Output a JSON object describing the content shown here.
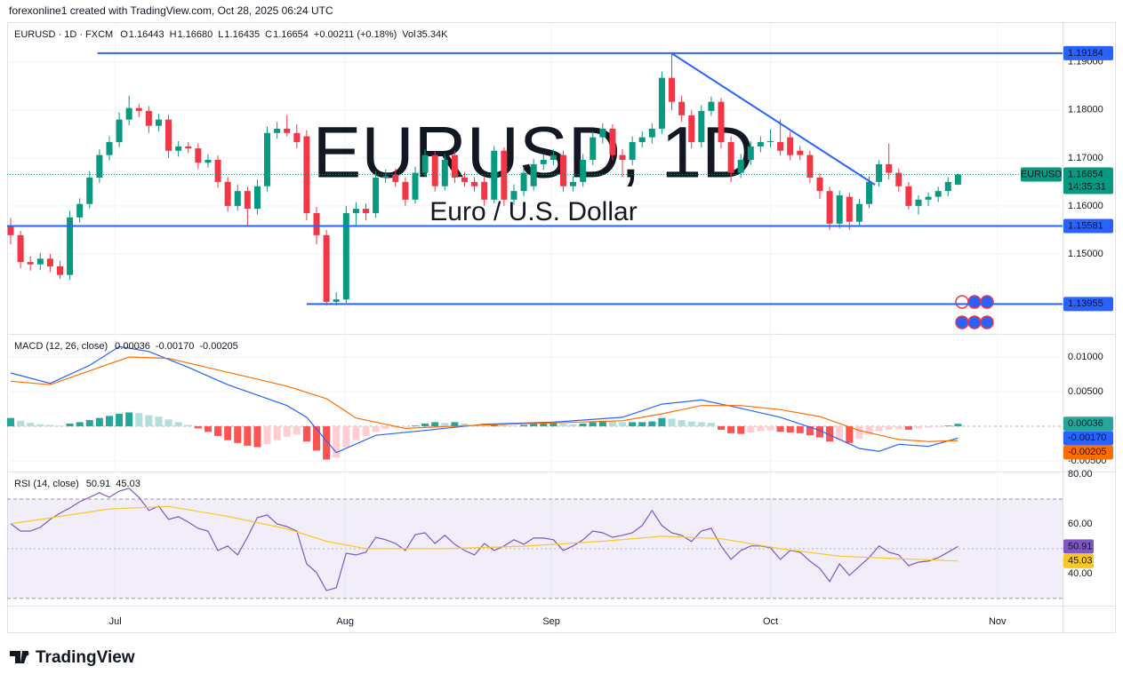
{
  "credit": "forexonline1 created with TradingView.com, Oct 28, 2025 06:24 UTC",
  "brand": "TradingView",
  "chart_data": [
    {
      "type": "candlestick",
      "title": "EURUSD · 1D · FXCM",
      "quote": [
        {
          "key": "O",
          "value": "1.16443"
        },
        {
          "key": "H",
          "value": "1.16680"
        },
        {
          "key": "L",
          "value": "1.16435"
        },
        {
          "key": "C",
          "value": "1.16654"
        }
      ],
      "change": "+0.00211 (+0.18%)",
      "volume": {
        "key": "Vol",
        "value": "35.34K"
      },
      "watermark": [
        "EURUSD, 1D",
        "Euro / U.S. Dollar"
      ],
      "up_color": "#089981",
      "down_color": "#f23645",
      "grid": true,
      "xlim": [
        -0.36,
        106.6
      ],
      "xticks": [
        {
          "value": 10.6,
          "label": "Jul"
        },
        {
          "value": 33.9,
          "label": "Aug"
        },
        {
          "value": 54.8,
          "label": "Sep"
        },
        {
          "value": 77,
          "label": "Oct"
        },
        {
          "value": 100,
          "label": "Nov"
        }
      ],
      "ylim": [
        1.1335,
        1.1983
      ],
      "yticks": [
        {
          "value": 1.15,
          "label": "1.15000"
        },
        {
          "value": 1.16,
          "label": "1.16000"
        },
        {
          "value": 1.17,
          "label": "1.17000"
        },
        {
          "value": 1.18,
          "label": "1.18000"
        },
        {
          "value": 1.19,
          "label": "1.19000"
        }
      ],
      "level_color": "#2962ff",
      "levels": [
        {
          "value": 1.19184,
          "from": 8.8
        },
        {
          "value": 1.15581,
          "from": -0.36
        },
        {
          "value": 1.13955,
          "from": 30
        }
      ],
      "trendline": {
        "x": [
          67,
          87.6
        ],
        "y": [
          1.1918,
          1.1644
        ]
      },
      "last_tag": {
        "symbol": "EURUSD",
        "countdown": "14:35:31"
      },
      "ohlc": [
        [
          1.1557,
          1.1575,
          1.152,
          1.1539
        ],
        [
          1.1539,
          1.1548,
          1.147,
          1.1483
        ],
        [
          1.1483,
          1.1495,
          1.1465,
          1.1478
        ],
        [
          1.1478,
          1.1502,
          1.1466,
          1.149
        ],
        [
          1.149,
          1.15,
          1.1462,
          1.1474
        ],
        [
          1.1474,
          1.1486,
          1.1448,
          1.1456
        ],
        [
          1.1456,
          1.159,
          1.1446,
          1.1576
        ],
        [
          1.1576,
          1.1616,
          1.1565,
          1.1604
        ],
        [
          1.1604,
          1.1672,
          1.1595,
          1.1659
        ],
        [
          1.1659,
          1.1718,
          1.1648,
          1.1706
        ],
        [
          1.1706,
          1.1745,
          1.1695,
          1.1733
        ],
        [
          1.1733,
          1.1795,
          1.1722,
          1.178
        ],
        [
          1.178,
          1.183,
          1.1768,
          1.1804
        ],
        [
          1.1804,
          1.1812,
          1.1785,
          1.1798
        ],
        [
          1.1798,
          1.1808,
          1.1752,
          1.1767
        ],
        [
          1.1767,
          1.1792,
          1.1755,
          1.178
        ],
        [
          1.178,
          1.179,
          1.17,
          1.1715
        ],
        [
          1.1715,
          1.1735,
          1.1703,
          1.1724
        ],
        [
          1.1724,
          1.1733,
          1.171,
          1.172
        ],
        [
          1.172,
          1.173,
          1.1677,
          1.169
        ],
        [
          1.169,
          1.1708,
          1.168,
          1.1696
        ],
        [
          1.1696,
          1.1705,
          1.1638,
          1.165
        ],
        [
          1.165,
          1.166,
          1.1588,
          1.16
        ],
        [
          1.16,
          1.1645,
          1.159,
          1.1631
        ],
        [
          1.1631,
          1.164,
          1.156,
          1.1594
        ],
        [
          1.1594,
          1.1655,
          1.1582,
          1.1641
        ],
        [
          1.1641,
          1.1765,
          1.163,
          1.1752
        ],
        [
          1.1752,
          1.1775,
          1.174,
          1.1761
        ],
        [
          1.1761,
          1.1789,
          1.1745,
          1.1752
        ],
        [
          1.1752,
          1.177,
          1.172,
          1.1733
        ],
        [
          1.1745,
          1.1758,
          1.157,
          1.1585
        ],
        [
          1.1585,
          1.1598,
          1.152,
          1.1539
        ],
        [
          1.1539,
          1.155,
          1.1392,
          1.14
        ],
        [
          1.14,
          1.142,
          1.1392,
          1.1405
        ],
        [
          1.1405,
          1.16,
          1.1398,
          1.1585
        ],
        [
          1.1585,
          1.1608,
          1.156,
          1.1594
        ],
        [
          1.1594,
          1.1605,
          1.157,
          1.1585
        ],
        [
          1.1585,
          1.1672,
          1.1575,
          1.1659
        ],
        [
          1.1659,
          1.1676,
          1.1648,
          1.1662
        ],
        [
          1.1665,
          1.1678,
          1.164,
          1.165
        ],
        [
          1.165,
          1.166,
          1.16,
          1.1613
        ],
        [
          1.1613,
          1.1682,
          1.1605,
          1.1669
        ],
        [
          1.1669,
          1.1718,
          1.166,
          1.1706
        ],
        [
          1.1706,
          1.1715,
          1.163,
          1.1641
        ],
        [
          1.1641,
          1.1708,
          1.1632,
          1.1696
        ],
        [
          1.1706,
          1.1715,
          1.1648,
          1.1659
        ],
        [
          1.1659,
          1.167,
          1.164,
          1.165
        ],
        [
          1.165,
          1.166,
          1.163,
          1.1641
        ],
        [
          1.165,
          1.1662,
          1.16,
          1.1613
        ],
        [
          1.1613,
          1.1725,
          1.1605,
          1.1715
        ],
        [
          1.1715,
          1.1722,
          1.16,
          1.1613
        ],
        [
          1.1613,
          1.1645,
          1.1602,
          1.1631
        ],
        [
          1.1631,
          1.168,
          1.162,
          1.1669
        ],
        [
          1.1641,
          1.1698,
          1.1632,
          1.1687
        ],
        [
          1.1687,
          1.1708,
          1.1675,
          1.1696
        ],
        [
          1.1696,
          1.1718,
          1.1685,
          1.1706
        ],
        [
          1.1706,
          1.1715,
          1.163,
          1.1641
        ],
        [
          1.1641,
          1.1662,
          1.163,
          1.165
        ],
        [
          1.165,
          1.1708,
          1.164,
          1.1696
        ],
        [
          1.1696,
          1.1755,
          1.1685,
          1.1743
        ],
        [
          1.1743,
          1.1772,
          1.173,
          1.1761
        ],
        [
          1.1761,
          1.177,
          1.1695,
          1.1706
        ],
        [
          1.1706,
          1.1718,
          1.166,
          1.1696
        ],
        [
          1.1696,
          1.1745,
          1.1685,
          1.1733
        ],
        [
          1.1733,
          1.1755,
          1.1722,
          1.1743
        ],
        [
          1.1743,
          1.1772,
          1.173,
          1.1761
        ],
        [
          1.1761,
          1.188,
          1.175,
          1.1867
        ],
        [
          1.1867,
          1.1918,
          1.18,
          1.1817
        ],
        [
          1.1817,
          1.183,
          1.1775,
          1.1789
        ],
        [
          1.1789,
          1.18,
          1.172,
          1.1733
        ],
        [
          1.1733,
          1.181,
          1.1722,
          1.1798
        ],
        [
          1.1798,
          1.1828,
          1.1788,
          1.1817
        ],
        [
          1.1817,
          1.1825,
          1.172,
          1.1733
        ],
        [
          1.1733,
          1.1745,
          1.165,
          1.1669
        ],
        [
          1.1669,
          1.1708,
          1.1658,
          1.1696
        ],
        [
          1.1696,
          1.1735,
          1.1685,
          1.1724
        ],
        [
          1.1724,
          1.1745,
          1.1712,
          1.1733
        ],
        [
          1.1733,
          1.176,
          1.1722,
          1.1735
        ],
        [
          1.1733,
          1.178,
          1.1705,
          1.1715
        ],
        [
          1.1743,
          1.1755,
          1.1695,
          1.1706
        ],
        [
          1.1715,
          1.1725,
          1.1695,
          1.1706
        ],
        [
          1.1706,
          1.1715,
          1.1648,
          1.1659
        ],
        [
          1.1659,
          1.1668,
          1.1615,
          1.1631
        ],
        [
          1.1631,
          1.164,
          1.155,
          1.1563
        ],
        [
          1.1563,
          1.1632,
          1.1553,
          1.1622
        ],
        [
          1.1619,
          1.1628,
          1.155,
          1.1567
        ],
        [
          1.1567,
          1.1615,
          1.1558,
          1.1604
        ],
        [
          1.1604,
          1.1662,
          1.1595,
          1.165
        ],
        [
          1.165,
          1.1695,
          1.164,
          1.1687
        ],
        [
          1.1687,
          1.173,
          1.1655,
          1.1669
        ],
        [
          1.1669,
          1.1678,
          1.163,
          1.1641
        ],
        [
          1.1641,
          1.165,
          1.1592,
          1.16
        ],
        [
          1.16,
          1.1622,
          1.1582,
          1.1613
        ],
        [
          1.1613,
          1.1628,
          1.16,
          1.1619
        ],
        [
          1.1619,
          1.164,
          1.1608,
          1.1631
        ],
        [
          1.1631,
          1.166,
          1.162,
          1.165
        ],
        [
          1.16443,
          1.1668,
          1.16435,
          1.16654
        ]
      ]
    },
    {
      "type": "macd",
      "title": "MACD (12, 26, close)",
      "ylim": [
        -0.0064,
        0.01308
      ],
      "yticks": [
        {
          "value": -0.005,
          "label": "-0.00500"
        },
        {
          "value": 0.005,
          "label": "0.00500"
        },
        {
          "value": 0.01,
          "label": "0.01000"
        }
      ],
      "histogram": {
        "colors": [
          "#26a69a",
          "#b2dfdb",
          "#ffcdd2",
          "#ff5252"
        ],
        "values": [
          0.0012,
          0.0008,
          0.0005,
          0.0003,
          0.0002,
          0.0001,
          0.0004,
          0.0006,
          0.0009,
          0.0012,
          0.0015,
          0.0018,
          0.002,
          0.0019,
          0.0016,
          0.0014,
          0.001,
          0.0006,
          0.0002,
          -0.0003,
          -0.0008,
          -0.0014,
          -0.002,
          -0.0024,
          -0.0028,
          -0.003,
          -0.0026,
          -0.002,
          -0.0015,
          -0.0012,
          -0.0022,
          -0.0035,
          -0.0048,
          -0.0045,
          -0.003,
          -0.002,
          -0.0014,
          -0.0008,
          -0.0004,
          -0.0002,
          -0.0001,
          0.0001,
          0.0004,
          0.0006,
          0.0005,
          0.0006,
          0.0004,
          0.0002,
          0.0001,
          0.0003,
          0.0002,
          0.0001,
          0.0002,
          0.0004,
          0.0005,
          0.0006,
          0.0004,
          0.0003,
          0.0004,
          0.0006,
          0.0008,
          0.0007,
          0.0006,
          0.0006,
          0.0006,
          0.0007,
          0.0012,
          0.0011,
          0.0009,
          0.0007,
          0.0006,
          0.0005,
          -0.0005,
          -0.001,
          -0.0011,
          -0.0009,
          -0.0007,
          -0.0006,
          -0.0008,
          -0.0009,
          -0.001,
          -0.0013,
          -0.0016,
          -0.0022,
          -0.002,
          -0.0024,
          -0.0018,
          -0.0012,
          -0.0007,
          -0.0005,
          -0.0004,
          -0.0005,
          -0.0003,
          -0.0002,
          -0.0001,
          0.0001,
          0.00036
        ]
      },
      "series": [
        {
          "color": "#2962ff",
          "x": [
            0,
            4,
            8,
            11,
            14,
            18,
            22,
            25,
            28,
            30,
            33,
            37,
            42,
            48,
            55,
            62,
            66,
            70,
            74,
            78,
            82,
            86,
            88,
            90,
            93,
            96
          ],
          "values": [
            0.0077,
            0.0062,
            0.0088,
            0.0115,
            0.0108,
            0.0085,
            0.006,
            0.0045,
            0.003,
            0.0013,
            -0.0038,
            -0.0013,
            -0.0006,
            0.0003,
            0.0006,
            0.0013,
            0.0032,
            0.0038,
            0.0026,
            0.0013,
            -0.0006,
            -0.0032,
            -0.0036,
            -0.0026,
            -0.0029,
            -0.0017
          ]
        },
        {
          "color": "#ff6d00",
          "x": [
            0,
            4,
            8,
            12,
            16,
            22,
            28,
            32,
            35,
            40,
            48,
            55,
            62,
            66,
            70,
            74,
            78,
            82,
            86,
            90,
            93,
            96
          ],
          "values": [
            0.0065,
            0.006,
            0.008,
            0.01,
            0.0098,
            0.0078,
            0.0058,
            0.004,
            0.0012,
            -0.0003,
            0.0002,
            0.0005,
            0.0008,
            0.0018,
            0.003,
            0.003,
            0.0024,
            0.0014,
            -0.0006,
            -0.0019,
            -0.0022,
            -0.00205
          ]
        }
      ],
      "readouts": [
        0.00036,
        {
          "value": -0.0017,
          "label": "-0.00170"
        },
        -0.00205
      ]
    },
    {
      "type": "rsi",
      "title": "RSI (14, close)",
      "ylim": [
        27.1,
        80.7
      ],
      "yticks": [
        {
          "value": 40,
          "label": "40.00"
        },
        {
          "value": 60,
          "label": "60.00"
        },
        {
          "value": 80,
          "label": "80.00"
        }
      ],
      "band": [
        30,
        70
      ],
      "midline": 50,
      "band_color": "#7e57c2",
      "series": [
        {
          "color": "#7e57c2",
          "values": [
            60,
            57.1,
            57.1,
            58.6,
            61.8,
            64.3,
            66.4,
            68.9,
            70.7,
            72.5,
            70.7,
            73.2,
            74.3,
            70.7,
            65.4,
            67.1,
            61.8,
            62.9,
            60.7,
            58.2,
            57.1,
            49.3,
            51.1,
            47.5,
            54.6,
            62.5,
            63.6,
            60,
            58.9,
            57.1,
            43.9,
            40.4,
            33.2,
            34.3,
            48.2,
            47.5,
            48.6,
            54.6,
            53.6,
            52.1,
            49.3,
            55.7,
            56.4,
            52.1,
            55.4,
            51.8,
            49.3,
            47.5,
            52.1,
            49.3,
            51.1,
            53.6,
            51.8,
            54.3,
            54.3,
            53.6,
            49.3,
            51.1,
            53.6,
            57.1,
            56.4,
            54.6,
            55.4,
            56.4,
            59.3,
            65.4,
            59.3,
            56.4,
            55.4,
            52.9,
            57.1,
            58.2,
            51.1,
            45.7,
            49.3,
            51.1,
            51.1,
            50.4,
            45.7,
            49.3,
            48.6,
            45,
            42.1,
            36.8,
            43.9,
            39.3,
            42.9,
            46.4,
            51.1,
            48.6,
            47.5,
            43.2,
            44.6,
            45,
            46.4,
            48.6,
            50.91
          ]
        },
        {
          "color": "#f9c826",
          "x": [
            0,
            10,
            16,
            22,
            28,
            32,
            36,
            44,
            52,
            60,
            66,
            72,
            78,
            84,
            90,
            96
          ],
          "values": [
            60,
            66,
            67,
            63,
            58,
            53,
            50,
            50,
            51,
            53,
            55,
            54,
            50,
            47,
            46,
            45.03
          ]
        }
      ]
    }
  ]
}
